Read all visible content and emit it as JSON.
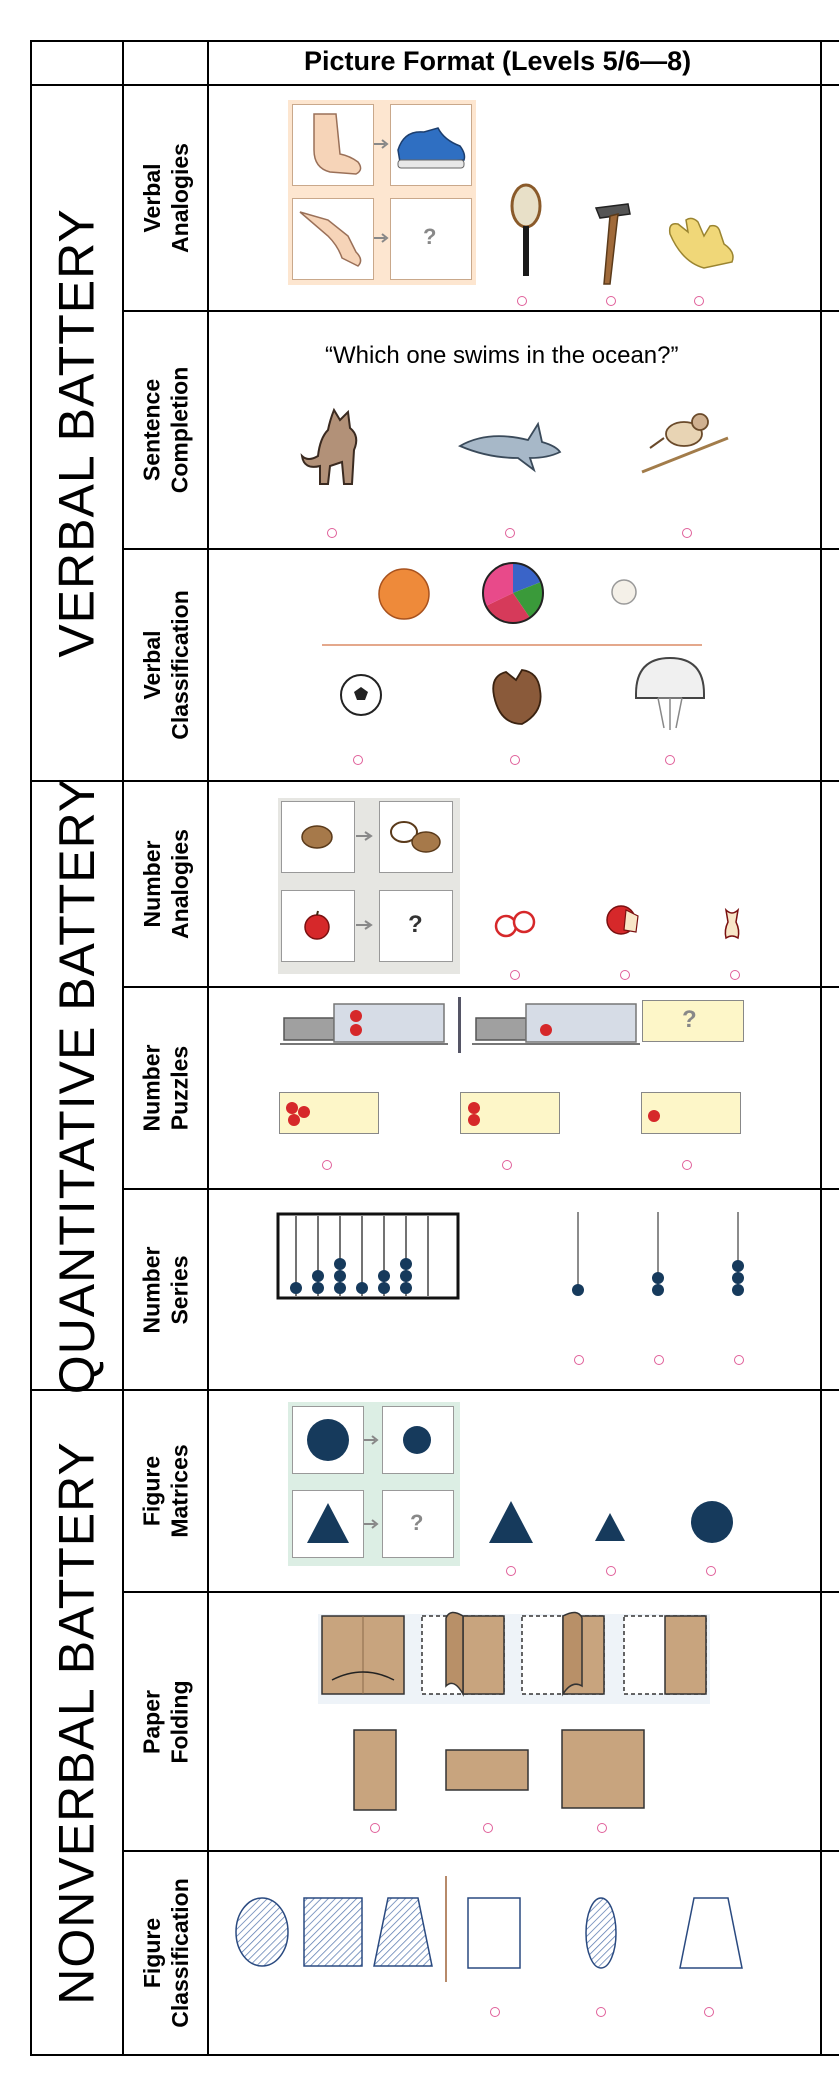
{
  "header": {
    "column_title": "Picture Format (Levels 5/6—8)"
  },
  "batteries": [
    {
      "name": "VERBAL BATTERY"
    },
    {
      "name": "QUANTITATIVE BATTERY"
    },
    {
      "name": "NONVERBAL BATTERY"
    }
  ],
  "subtests": [
    {
      "label": "Verbal\nAnalogies"
    },
    {
      "label": "Sentence\nCompletion"
    },
    {
      "label": "Verbal\nClassification"
    },
    {
      "label": "Number\nAnalogies"
    },
    {
      "label": "Number\nPuzzles"
    },
    {
      "label": "Number\nSeries"
    },
    {
      "label": "Figure\nMatrices"
    },
    {
      "label": "Paper Folding"
    },
    {
      "label": "Figure\nClassification"
    }
  ],
  "items": {
    "sentence_completion_prompt": "“Which one swims in the ocean?”",
    "question_mark": "?"
  },
  "colors": {
    "answer_bubble": "#e0609a",
    "paper": "#c8a47e",
    "shape_navy": "#163a5c",
    "matrix_bg": "#dceee4",
    "analogy_bg": "#fde6d0",
    "number_bg": "#e6e6e2"
  }
}
